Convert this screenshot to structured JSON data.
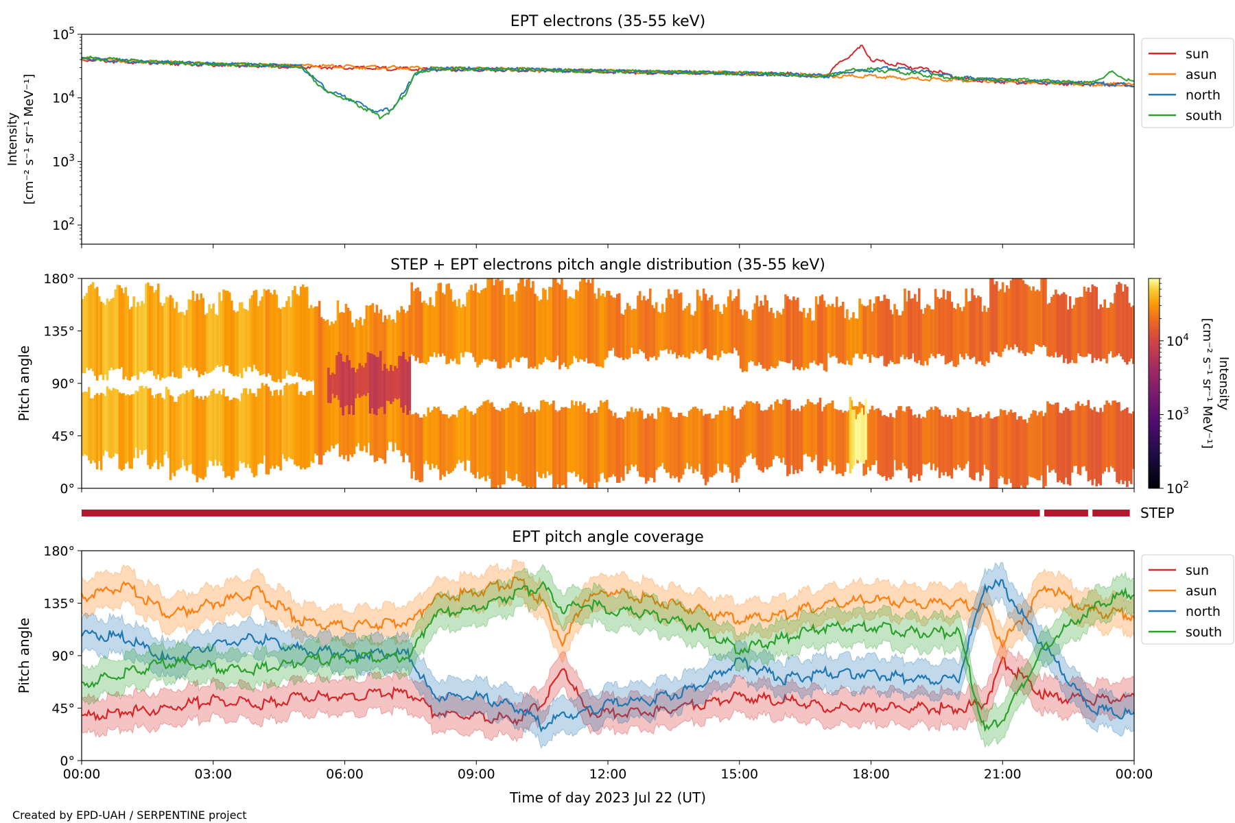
{
  "figure": {
    "footer": "Created by EPD-UAH / SERPENTINE project",
    "xlabel": "Time of day 2023 Jul 22 (UT)",
    "time_ticks": [
      "00:00",
      "03:00",
      "06:00",
      "09:00",
      "12:00",
      "15:00",
      "18:00",
      "21:00",
      "00:00"
    ]
  },
  "colors": {
    "sun": "#d62728",
    "asun": "#ff7f0e",
    "north": "#1f77b4",
    "south": "#2ca02c",
    "step_bar": "#b2182b"
  },
  "chart_data": [
    {
      "type": "line",
      "title": "EPT electrons (35-55 keV)",
      "ylabel_line1": "Intensity",
      "ylabel_line2": "[cm⁻² s⁻¹ sr⁻¹ MeV⁻¹]",
      "yscale": "log",
      "ylim": [
        50,
        100000
      ],
      "yticks": [
        {
          "value": 100,
          "base": "10",
          "exp": "2"
        },
        {
          "value": 1000,
          "base": "10",
          "exp": "3"
        },
        {
          "value": 10000,
          "base": "10",
          "exp": "4"
        },
        {
          "value": 100000,
          "base": "10",
          "exp": "5"
        }
      ],
      "x_units": "hours",
      "xlim": [
        0,
        24
      ],
      "legend_placement": "outside-right-top",
      "series": [
        {
          "name": "sun",
          "color": "#d62728",
          "x": [
            0,
            1,
            2,
            3,
            4,
            5,
            6,
            7,
            8,
            9,
            10,
            11,
            12,
            13,
            14,
            15,
            16,
            17,
            17.5,
            17.8,
            18,
            18.5,
            19,
            19.5,
            20,
            21,
            22,
            23,
            24
          ],
          "y": [
            40000,
            37000,
            35000,
            33000,
            32000,
            31000,
            30000,
            29000,
            28000,
            28000,
            27000,
            27000,
            26000,
            25000,
            25000,
            24000,
            24000,
            22000,
            45000,
            65000,
            40000,
            34000,
            30000,
            26000,
            20000,
            18000,
            17000,
            16500,
            16000
          ]
        },
        {
          "name": "asun",
          "color": "#ff7f0e",
          "x": [
            0,
            1,
            2,
            3,
            4,
            5,
            6,
            7,
            8,
            9,
            10,
            11,
            12,
            13,
            14,
            15,
            16,
            17,
            18,
            19,
            20,
            21,
            22,
            23,
            24
          ],
          "y": [
            42000,
            38000,
            36000,
            34000,
            33000,
            32000,
            31000,
            30000,
            29000,
            28500,
            28000,
            27000,
            26500,
            25500,
            25000,
            24500,
            23500,
            22000,
            22000,
            20000,
            19000,
            18500,
            17500,
            16500,
            16000
          ]
        },
        {
          "name": "north",
          "color": "#1f77b4",
          "x": [
            0,
            1,
            2,
            3,
            4,
            5,
            5.3,
            5.6,
            5.9,
            6.2,
            6.5,
            6.8,
            7.1,
            7.4,
            7.6,
            8,
            9,
            10,
            11,
            12,
            13,
            14,
            15,
            16,
            17,
            17.5,
            18,
            18.5,
            19,
            20,
            21,
            22,
            23,
            24
          ],
          "y": [
            42000,
            38000,
            36000,
            34000,
            33000,
            31000,
            20000,
            13000,
            11000,
            9000,
            7000,
            6000,
            7000,
            13000,
            24000,
            29000,
            28500,
            28000,
            27000,
            26500,
            25500,
            25000,
            24500,
            23500,
            22000,
            26000,
            27000,
            30000,
            27000,
            21000,
            19000,
            18000,
            17000,
            16000
          ]
        },
        {
          "name": "south",
          "color": "#2ca02c",
          "x": [
            0,
            1,
            2,
            3,
            4,
            5,
            5.3,
            5.6,
            5.9,
            6.2,
            6.5,
            6.8,
            7.1,
            7.4,
            7.6,
            8,
            9,
            10,
            11,
            12,
            13,
            14,
            15,
            16,
            17,
            17.5,
            18,
            19,
            20,
            21,
            22,
            23,
            23.5,
            24
          ],
          "y": [
            43000,
            39000,
            36000,
            34000,
            33000,
            31000,
            19000,
            12000,
            10500,
            8500,
            6500,
            5000,
            6500,
            12000,
            23000,
            29000,
            28500,
            28000,
            27000,
            26500,
            25500,
            25000,
            24500,
            23500,
            22000,
            27000,
            28000,
            24000,
            20000,
            19500,
            18500,
            17000,
            25000,
            17000
          ]
        }
      ]
    },
    {
      "type": "heatmap",
      "title": "STEP + EPT electrons pitch angle distribution (35-55 keV)",
      "ylabel": "Pitch angle",
      "ylim": [
        0,
        180
      ],
      "yticks": [
        "0°",
        "45°",
        "90°",
        "135°",
        "180°"
      ],
      "x_units": "hours",
      "xlim": [
        0,
        24
      ],
      "colorbar": {
        "label_line1": "Intensity",
        "label_line2": "[cm⁻² s⁻¹ sr⁻¹ MeV⁻¹]",
        "scale": "log",
        "range": [
          100,
          70000
        ],
        "ticks": [
          {
            "value": 100,
            "base": "10",
            "exp": "2"
          },
          {
            "value": 1000,
            "base": "10",
            "exp": "3"
          },
          {
            "value": 10000,
            "base": "10",
            "exp": "4"
          }
        ],
        "colormap": "inferno"
      },
      "segments": [
        {
          "x0": 0,
          "x1": 2,
          "lo": 25,
          "hi": 165,
          "gap": [
            82,
            98
          ],
          "value": 40000
        },
        {
          "x0": 2,
          "x1": 4,
          "lo": 15,
          "hi": 160,
          "gap": [
            80,
            100
          ],
          "value": 36000
        },
        {
          "x0": 4,
          "x1": 5.3,
          "lo": 20,
          "hi": 165,
          "gap": [
            85,
            95
          ],
          "value": 33000
        },
        {
          "x0": 5.3,
          "x1": 7.5,
          "lo": 30,
          "hi": 150,
          "gap": null,
          "value": 28000
        },
        {
          "x0": 5.6,
          "x1": 7.5,
          "lo": 72,
          "hi": 108,
          "gap": null,
          "value": 9000
        },
        {
          "x0": 7.5,
          "x1": 9,
          "lo": 15,
          "hi": 165,
          "gap": [
            65,
            112
          ],
          "value": 28000
        },
        {
          "x0": 9,
          "x1": 12,
          "lo": 5,
          "hi": 172,
          "gap": [
            70,
            108
          ],
          "value": 26000
        },
        {
          "x0": 12,
          "x1": 15,
          "lo": 12,
          "hi": 160,
          "gap": [
            65,
            115
          ],
          "value": 24000
        },
        {
          "x0": 15,
          "x1": 17,
          "lo": 20,
          "hi": 155,
          "gap": [
            72,
            105
          ],
          "value": 22000
        },
        {
          "x0": 17,
          "x1": 18,
          "lo": 20,
          "hi": 155,
          "gap": [
            70,
            110
          ],
          "value": 26000
        },
        {
          "x0": 17.5,
          "x1": 17.9,
          "lo": 20,
          "hi": 70,
          "gap": null,
          "value": 60000
        },
        {
          "x0": 18,
          "x1": 20.7,
          "lo": 15,
          "hi": 160,
          "gap": [
            65,
            110
          ],
          "value": 20000
        },
        {
          "x0": 20.7,
          "x1": 22,
          "lo": 3,
          "hi": 178,
          "gap": [
            62,
            118
          ],
          "value": 19000
        },
        {
          "x0": 22,
          "x1": 24,
          "lo": 10,
          "hi": 165,
          "gap": [
            70,
            112
          ],
          "value": 17000
        }
      ]
    },
    {
      "type": "line",
      "label": "STEP",
      "x_units": "hours",
      "coverage": [
        [
          0,
          21.85
        ],
        [
          21.95,
          22.95
        ],
        [
          23.05,
          23.9
        ]
      ]
    },
    {
      "type": "line",
      "title": "EPT pitch angle coverage",
      "ylabel": "Pitch angle",
      "ylim": [
        0,
        180
      ],
      "yticks": [
        "0°",
        "45°",
        "90°",
        "135°",
        "180°"
      ],
      "x_units": "hours",
      "xlim": [
        0,
        24
      ],
      "legend_placement": "outside-right-top",
      "series": [
        {
          "name": "sun",
          "color": "#d62728",
          "band": 15,
          "x": [
            0,
            1,
            2,
            3,
            4,
            5,
            6,
            7,
            7.5,
            8,
            9,
            10,
            10.5,
            11,
            11.5,
            12,
            13,
            14,
            15,
            16,
            17,
            18,
            19,
            20,
            20.6,
            21,
            22,
            23,
            24
          ],
          "y": [
            38,
            42,
            45,
            52,
            48,
            55,
            55,
            58,
            58,
            42,
            38,
            35,
            50,
            80,
            42,
            40,
            42,
            48,
            55,
            52,
            45,
            45,
            45,
            45,
            50,
            85,
            55,
            52,
            55
          ]
        },
        {
          "name": "asun",
          "color": "#ff7f0e",
          "band": 15,
          "x": [
            0,
            1,
            2,
            3,
            4,
            5,
            6,
            7,
            7.5,
            8,
            9,
            10,
            10.5,
            11,
            11.5,
            12,
            13,
            14,
            15,
            16,
            17,
            18,
            19,
            20,
            20.6,
            21,
            22,
            23,
            24
          ],
          "y": [
            140,
            150,
            125,
            135,
            145,
            120,
            115,
            118,
            118,
            138,
            145,
            155,
            135,
            100,
            140,
            145,
            138,
            130,
            120,
            125,
            135,
            138,
            135,
            135,
            130,
            100,
            150,
            128,
            125
          ]
        },
        {
          "name": "north",
          "color": "#1f77b4",
          "band": 15,
          "x": [
            0,
            1,
            2,
            3,
            4,
            5,
            6,
            7,
            7.5,
            8,
            9,
            10,
            10.5,
            11,
            11.5,
            12,
            13,
            14,
            15,
            16,
            17,
            18,
            19,
            20,
            20.6,
            21,
            22,
            23,
            24
          ],
          "y": [
            110,
            105,
            85,
            100,
            105,
            95,
            92,
            92,
            90,
            55,
            55,
            45,
            30,
            40,
            42,
            48,
            52,
            62,
            85,
            70,
            75,
            75,
            70,
            70,
            150,
            150,
            95,
            45,
            38
          ]
        },
        {
          "name": "south",
          "color": "#2ca02c",
          "band": 15,
          "x": [
            0,
            1,
            2,
            3,
            4,
            5,
            6,
            7,
            7.5,
            8,
            9,
            10,
            10.5,
            11,
            11.5,
            12,
            13,
            14,
            15,
            16,
            17,
            18,
            19,
            20,
            20.6,
            21,
            22,
            23,
            24
          ],
          "y": [
            65,
            75,
            85,
            80,
            78,
            85,
            88,
            88,
            90,
            125,
            130,
            145,
            150,
            130,
            135,
            130,
            125,
            115,
            95,
            105,
            115,
            115,
            110,
            110,
            25,
            35,
            100,
            130,
            145
          ]
        }
      ]
    }
  ]
}
